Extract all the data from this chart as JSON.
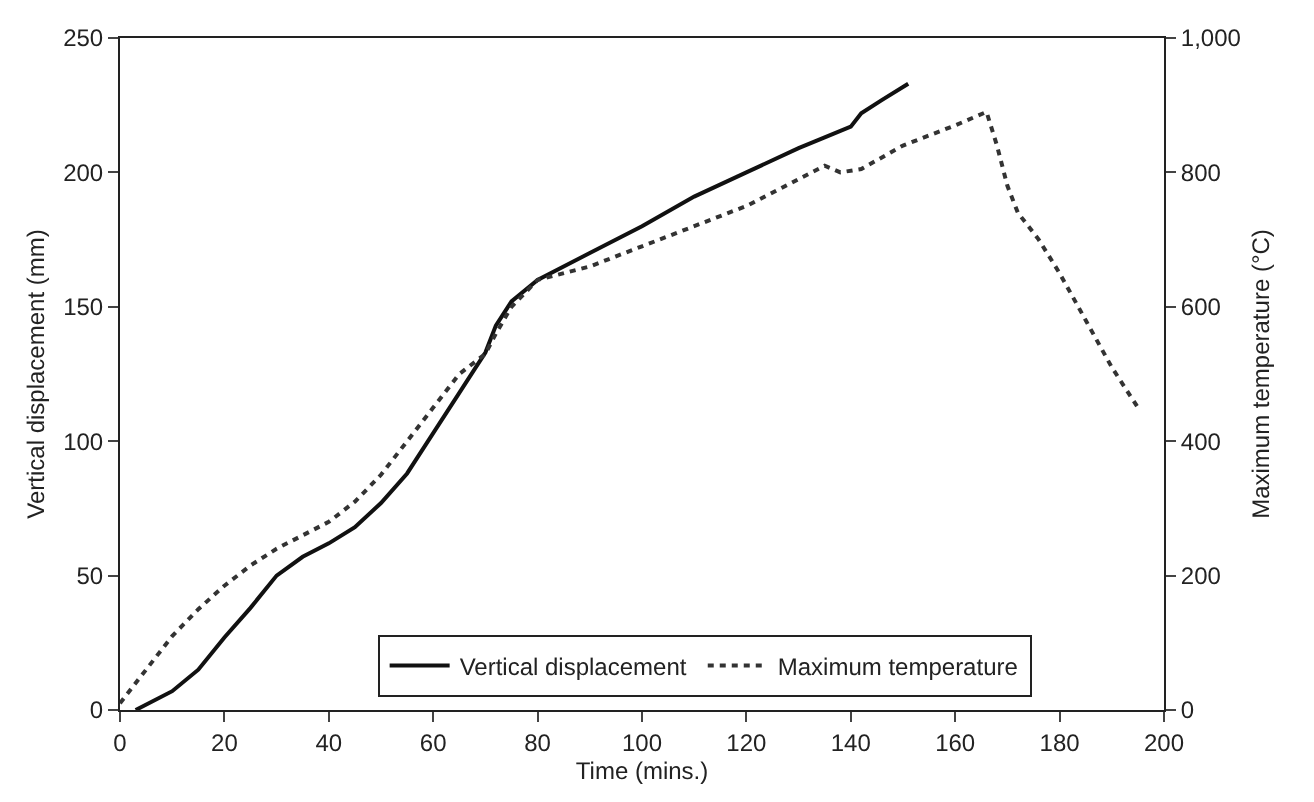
{
  "chart_data": {
    "type": "line",
    "xlabel": "Time (mins.)",
    "ylabel": "Vertical displacement (mm)",
    "y2label": "Maximum temperature (°C)",
    "xlim": [
      0,
      200
    ],
    "xticks": [
      0,
      20,
      40,
      60,
      80,
      100,
      120,
      140,
      160,
      180,
      200
    ],
    "ylim": [
      0,
      250
    ],
    "yticks": [
      0,
      50,
      100,
      150,
      200,
      250
    ],
    "y2lim": [
      0,
      1000
    ],
    "y2ticks": [
      0,
      200,
      400,
      600,
      800,
      {
        "value": 1000,
        "label": "1,000"
      }
    ],
    "legend": "bottom",
    "marker": "none",
    "series": [
      {
        "name": "Vertical displacement",
        "color": "#111111",
        "line_style": "solid",
        "x": [
          3,
          10,
          15,
          20,
          25,
          30,
          35,
          40,
          45,
          50,
          55,
          60,
          65,
          68,
          70,
          72,
          75,
          80,
          90,
          100,
          110,
          120,
          130,
          135,
          140,
          142,
          146,
          151
        ],
        "values": [
          0,
          7,
          15,
          27,
          38,
          50,
          57,
          62,
          68,
          77,
          88,
          103,
          118,
          127,
          133,
          143,
          152,
          160,
          170,
          180,
          191,
          200,
          209,
          213,
          217,
          222,
          227,
          233
        ]
      },
      {
        "name": "Maximum temperature",
        "color": "#333333",
        "line_style": "dotted",
        "axis": "y2",
        "x": [
          0,
          5,
          10,
          15,
          20,
          25,
          30,
          35,
          40,
          45,
          50,
          55,
          60,
          65,
          70,
          72,
          75,
          80,
          90,
          100,
          110,
          120,
          130,
          135,
          138,
          142,
          150,
          160,
          166,
          168,
          170,
          172,
          176,
          180,
          185,
          190,
          195
        ],
        "values": [
          10,
          60,
          110,
          150,
          185,
          215,
          240,
          260,
          280,
          310,
          350,
          400,
          450,
          500,
          530,
          560,
          600,
          640,
          660,
          690,
          720,
          750,
          790,
          810,
          800,
          805,
          840,
          870,
          890,
          840,
          780,
          740,
          700,
          650,
          580,
          510,
          450
        ]
      }
    ]
  }
}
